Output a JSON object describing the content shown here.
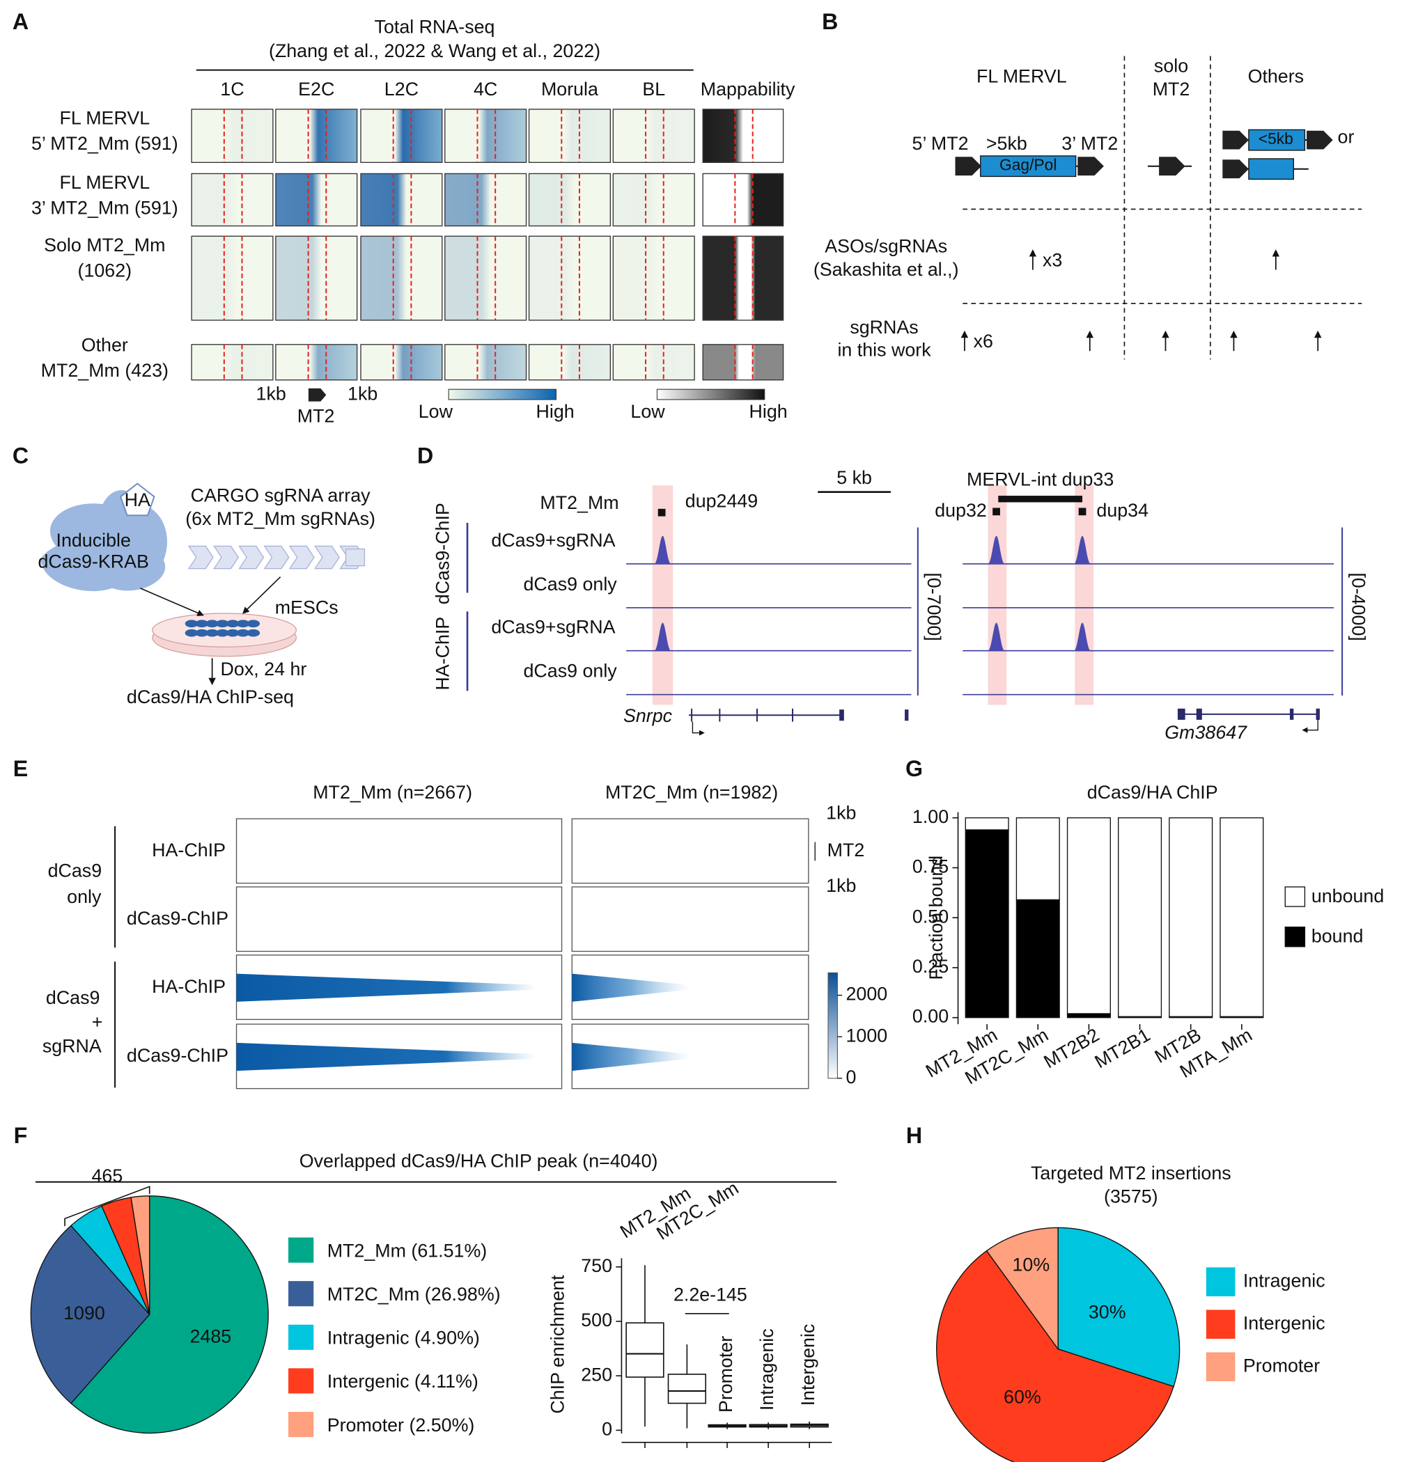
{
  "panels": {
    "A": {
      "label": "A",
      "title": "Total RNA-seq",
      "subtitle": "(Zhang et al., 2022 & Wang et al., 2022)",
      "columns": [
        "1C",
        "E2C",
        "L2C",
        "4C",
        "Morula",
        "BL"
      ],
      "mappability": "Mappability",
      "rows": [
        [
          "FL MERVL",
          "5’ MT2_Mm (591)"
        ],
        [
          "FL MERVL",
          "3’ MT2_Mm (591)"
        ],
        [
          "Solo MT2_Mm",
          "(1062)"
        ],
        [
          "Other",
          "MT2_Mm (423)"
        ]
      ],
      "flank_left": "1kb",
      "element": "MT2",
      "flank_right": "1kb",
      "rna_scale": [
        "Low",
        "High"
      ],
      "map_scale": [
        "Low",
        "High"
      ]
    },
    "B": {
      "label": "B",
      "fl": "FL MERVL",
      "solo": [
        "solo",
        "MT2"
      ],
      "others": "Others",
      "ltr5": "5’ MT2",
      "size_long": ">5kb",
      "ltr3": "3’ MT2",
      "gene": "Gag/Pol",
      "size_short": "<5kb",
      "or": "or",
      "aso": [
        "ASOs/sgRNAs",
        "(Sakashita et al.,)"
      ],
      "aso_count": "x3",
      "sg": [
        "sgRNAs",
        "in this work"
      ],
      "sg_count": "x6"
    },
    "C": {
      "label": "C",
      "tag": "HA",
      "protein": [
        "Inducible",
        "dCas9-KRAB"
      ],
      "array": [
        "CARGO sgRNA array",
        "(6x MT2_Mm sgRNAs)"
      ],
      "cells": "mESCs",
      "treatment": "Dox, 24 hr",
      "assay": "dCas9/HA ChIP-seq"
    },
    "D": {
      "label": "D",
      "track_feature": "MT2_Mm",
      "peak1": "dup2449",
      "scale": "5 kb",
      "element": "MERVL-int dup33",
      "peak2": "dup32",
      "peak3": "dup34",
      "groups": [
        "dCas9-ChIP",
        "HA-ChIP"
      ],
      "tracks": [
        "dCas9+sgRNA",
        "dCas9 only",
        "dCas9+sgRNA",
        "dCas9 only"
      ],
      "ranges": [
        "[0-7000]",
        "[0-4000]"
      ],
      "genes": [
        "Snrpc",
        "Gm38647"
      ]
    },
    "E": {
      "label": "E",
      "columns": [
        "MT2_Mm (n=2667)",
        "MT2C_Mm (n=1982)"
      ],
      "flank_top": "1kb",
      "element": "MT2",
      "flank_bottom": "1kb",
      "groups": [
        [
          "dCas9",
          "only"
        ],
        [
          "dCas9",
          "+",
          "sgRNA"
        ]
      ],
      "rows": [
        "HA-ChIP",
        "dCas9-ChIP",
        "HA-ChIP",
        "dCas9-ChIP"
      ],
      "colorbar_lim": [
        0,
        2540
      ],
      "colorbar_ticks": [
        0,
        1000,
        2000
      ]
    },
    "F": {
      "label": "F"
    },
    "G": {
      "label": "G"
    },
    "H": {
      "label": "H"
    }
  },
  "chart_data": [
    {
      "type": "bar",
      "stacked": true,
      "title": "dCas9/HA ChIP",
      "ylabel": "Fraction bound",
      "categories": [
        "MT2_Mm",
        "MT2C_Mm",
        "MT2B2",
        "MT2B1",
        "MT2B",
        "MTA_Mm"
      ],
      "series": [
        {
          "name": "bound",
          "color": "#000000",
          "values": [
            0.94,
            0.59,
            0.02,
            0.005,
            0.005,
            0.005
          ]
        },
        {
          "name": "unbound",
          "color": "#ffffff",
          "values": [
            0.06,
            0.41,
            0.98,
            0.995,
            0.995,
            0.995
          ]
        }
      ],
      "ylim": [
        0,
        1
      ],
      "yticks": [
        {
          "value": 0,
          "label": "0.00"
        },
        {
          "value": 0.25,
          "label": "0.25"
        },
        {
          "value": 0.5,
          "label": "0.50"
        },
        {
          "value": 0.75,
          "label": "0.75"
        },
        {
          "value": 1,
          "label": "1.00"
        }
      ],
      "legend": "right"
    },
    {
      "type": "pie",
      "title": "Overlapped dCas9/HA ChIP peak (n=4040)",
      "categories": [
        "MT2_Mm (61.51%)",
        "MT2C_Mm (26.98%)",
        "Intragenic (4.90%)",
        "Intergenic (4.11%)",
        "Promoter (2.50%)"
      ],
      "values": [
        2485,
        1090,
        198,
        166,
        101
      ],
      "colors": [
        "#00A88A",
        "#3A5F98",
        "#00C5DE",
        "#FF3D1E",
        "#FFA07E"
      ],
      "group_label": 465
    },
    {
      "type": "box",
      "ylabel": "ChIP enrichment",
      "categories": [
        "MT2_Mm",
        "MT2C_Mm",
        "Promoter",
        "Intragenic",
        "Intergenic"
      ],
      "stats": {
        "min": [
          17,
          9,
          5,
          5,
          5
        ],
        "q1": [
          244,
          124,
          15,
          15,
          15
        ],
        "median": [
          351,
          180,
          20,
          20,
          22
        ],
        "q3": [
          493,
          257,
          25,
          26,
          28
        ],
        "max": [
          758,
          394,
          35,
          36,
          40
        ]
      },
      "ylim": [
        -15,
        790
      ],
      "yticks": [
        0,
        250,
        500,
        750
      ],
      "annotation": "2.2e-145"
    },
    {
      "type": "pie",
      "title": "Targeted MT2 insertions",
      "subtitle": "(3575)",
      "categories": [
        "Intragenic",
        "Intergenic",
        "Promoter"
      ],
      "values": [
        30,
        60,
        10
      ],
      "value_labels": [
        "30%",
        "60%",
        "10%"
      ],
      "colors": [
        "#00C5DE",
        "#FF3D1E",
        "#FFA07E"
      ]
    }
  ]
}
